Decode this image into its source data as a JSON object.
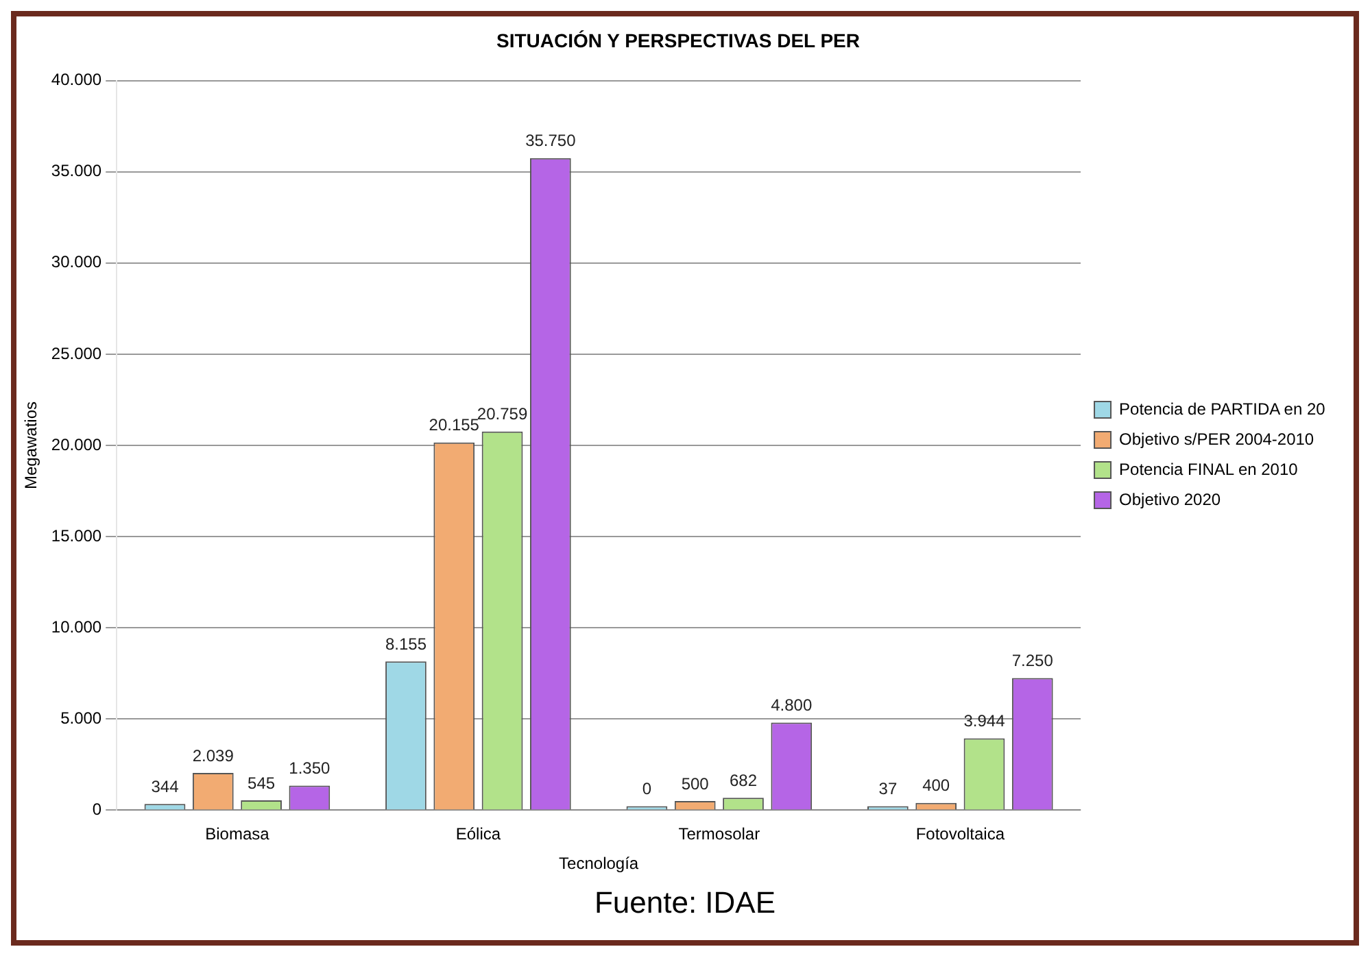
{
  "chart_data": {
    "type": "bar",
    "title": "SITUACIÓN Y PERSPECTIVAS DEL PER",
    "xlabel": "Tecnología",
    "ylabel": "Megawatios",
    "categories": [
      "Biomasa",
      "Eólica",
      "Termosolar",
      "Fotovoltaica"
    ],
    "series": [
      {
        "name": "Potencia de PARTIDA en 20",
        "color": "#9fd8e6",
        "values": [
          344,
          8155,
          0,
          37
        ],
        "value_labels": [
          "344",
          "8.155",
          "0",
          "37"
        ]
      },
      {
        "name": "Objetivo s/PER 2004-2010",
        "color": "#f2ab72",
        "values": [
          2039,
          20155,
          500,
          400
        ],
        "value_labels": [
          "2.039",
          "20.155",
          "500",
          "400"
        ]
      },
      {
        "name": "Potencia FINAL en 2010",
        "color": "#b2e28a",
        "values": [
          545,
          20759,
          682,
          3944
        ],
        "value_labels": [
          "545",
          "20.759",
          "682",
          "3.944"
        ]
      },
      {
        "name": "Objetivo 2020",
        "color": "#b565e6",
        "values": [
          1350,
          35750,
          4800,
          7250
        ],
        "value_labels": [
          "1.350",
          "35.750",
          "4.800",
          "7.250"
        ]
      }
    ],
    "ylim": [
      0,
      40000
    ],
    "yticks": [
      {
        "value": 0,
        "label": "0"
      },
      {
        "value": 5000,
        "label": "5.000"
      },
      {
        "value": 10000,
        "label": "10.000"
      },
      {
        "value": 15000,
        "label": "15.000"
      },
      {
        "value": 20000,
        "label": "20.000"
      },
      {
        "value": 25000,
        "label": "25.000"
      },
      {
        "value": 30000,
        "label": "30.000"
      },
      {
        "value": 35000,
        "label": "35.000"
      },
      {
        "value": 40000,
        "label": "40.000"
      }
    ],
    "grid": "y",
    "legend": "right",
    "annotations": [
      "Fuente: IDAE"
    ]
  }
}
